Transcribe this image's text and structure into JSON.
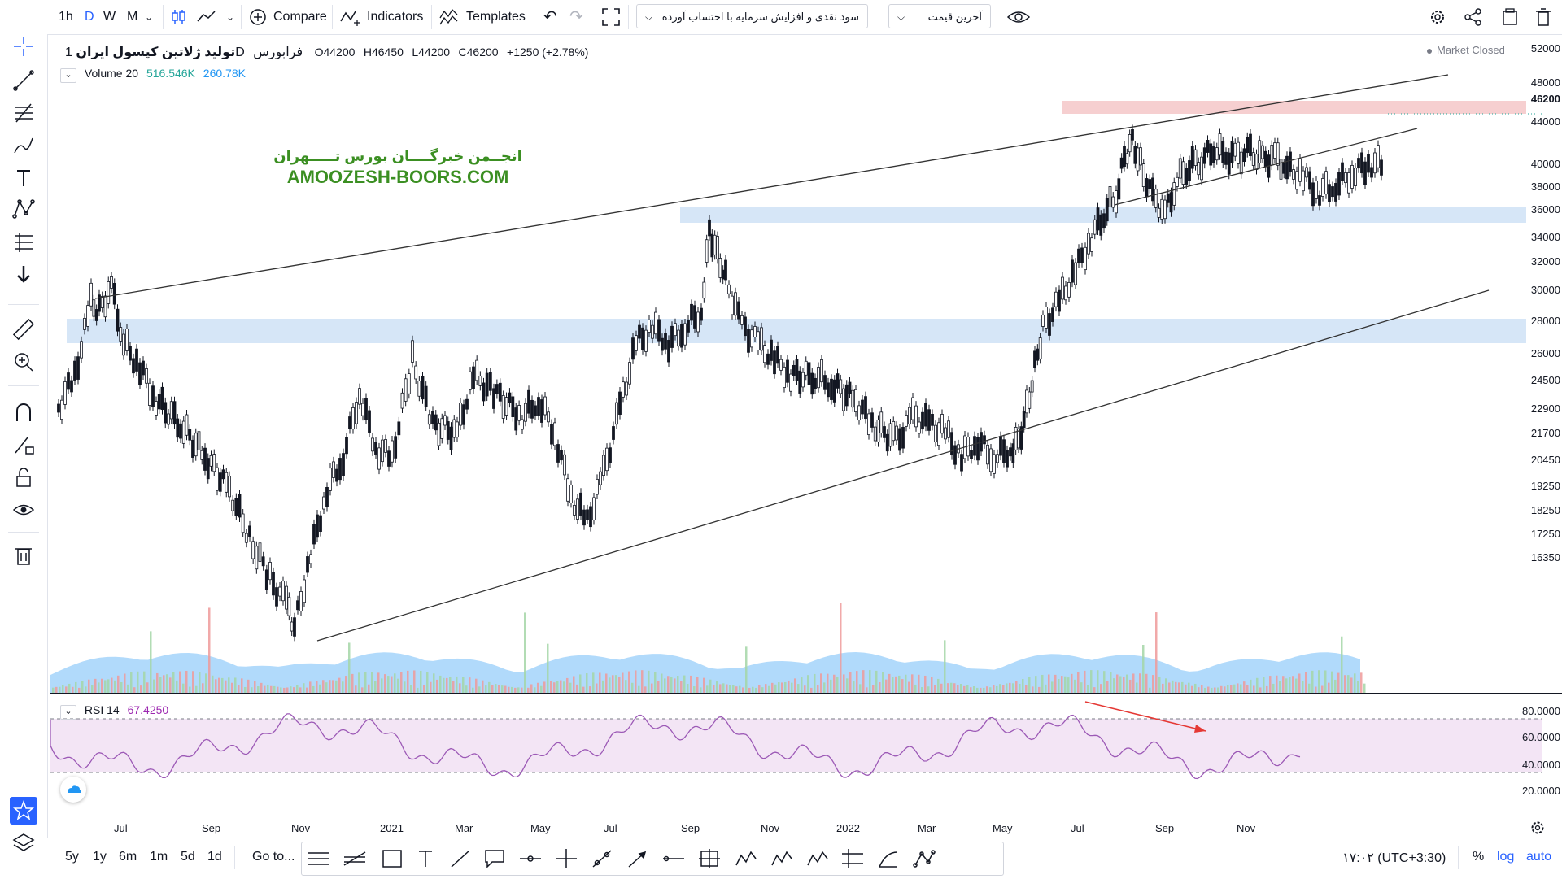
{
  "toolbar": {
    "intervals": [
      "1h",
      "D",
      "W",
      "M"
    ],
    "active_interval": "D",
    "compare_label": "Compare",
    "indicators_label": "Indicators",
    "templates_label": "Templates",
    "study_select": "سود نقدی و افزایش سرمایه با احتساب آورده",
    "price_type_select": "آخرین قیمت"
  },
  "legend": {
    "symbol_name": "تولید ژلاتین کپسول ایران",
    "interval": "1D",
    "exchange": "فرابورس",
    "open": "O44200",
    "high": "H46450",
    "low": "L44200",
    "close": "C46200",
    "change": "+1250 (+2.78%)",
    "volume_label": "Volume 20",
    "volume_value": "516.546K",
    "volume_ma": "260.78K",
    "market_status": "Market Closed"
  },
  "watermark": {
    "line1": "انجــمن خبرگــــان بورس تـــــهران",
    "line2": "AMOOZESH-BOORS.COM"
  },
  "price_axis": [
    "52000",
    "48000",
    "46200",
    "44000",
    "40000",
    "38000",
    "36000",
    "34000",
    "32000",
    "30000",
    "28000",
    "26000",
    "24500",
    "22900",
    "21700",
    "20450",
    "19250",
    "18250",
    "17250",
    "16350"
  ],
  "rsi": {
    "label": "RSI 14",
    "value": "67.4250",
    "axis": [
      "80.0000",
      "60.0000",
      "40.0000",
      "20.0000"
    ]
  },
  "time_axis": [
    "Jul",
    "Sep",
    "Nov",
    "2021",
    "Mar",
    "May",
    "Jul",
    "Sep",
    "Nov",
    "2022",
    "Mar",
    "May",
    "Jul",
    "Sep",
    "Nov"
  ],
  "bottom": {
    "ranges": [
      "5y",
      "1y",
      "6m",
      "1m",
      "5d",
      "1d"
    ],
    "goto": "Go to...",
    "clock": "۱۷:۰۲ (UTC+3:30)",
    "percent": "%",
    "log": "log",
    "auto": "auto"
  },
  "colors": {
    "up": "#26a69a",
    "down": "#ef5350",
    "bar": "#131722",
    "zone_blue": "#d6e6f7",
    "zone_red": "#f6cfd0",
    "rsi_line": "#9c59b6",
    "rsi_band": "#f3e5f5",
    "accent": "#2962ff",
    "watermark": "#3b8f22"
  }
}
